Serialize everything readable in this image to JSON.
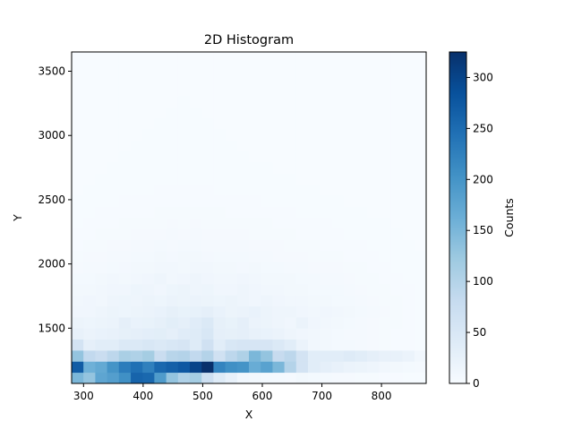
{
  "chart_data": {
    "type": "heatmap",
    "title": "2D Histogram",
    "xlabel": "X",
    "ylabel": "Y",
    "xlim": [
      280,
      875
    ],
    "ylim": [
      1070,
      3650
    ],
    "x_ticks": [
      300,
      400,
      500,
      600,
      700,
      800
    ],
    "y_ticks": [
      1500,
      2000,
      2500,
      3000,
      3500
    ],
    "x_edges": [
      280,
      299.8,
      319.7,
      339.5,
      359.3,
      379.2,
      399,
      418.8,
      438.7,
      458.5,
      478.3,
      498.2,
      518,
      537.8,
      557.7,
      577.5,
      597.3,
      617.2,
      637,
      656.8,
      676.7,
      696.5,
      716.3,
      736.2,
      756,
      775.8,
      795.7,
      815.5,
      835.3,
      855.2,
      875
    ],
    "y_edges": [
      1070,
      1156,
      1242,
      1328,
      1414,
      1500,
      1586,
      1672,
      1758,
      1844,
      1930,
      2016,
      2102,
      2188,
      2274,
      2360,
      2446,
      2532,
      2618,
      2704,
      2790,
      2876,
      2962,
      3048,
      3134,
      3220,
      3306,
      3392,
      3478,
      3564,
      3650
    ],
    "counts": [
      [
        150,
        130,
        175,
        185,
        205,
        260,
        255,
        190,
        130,
        105,
        115,
        70,
        40,
        25,
        10,
        8,
        6,
        5,
        4,
        8,
        6,
        5,
        4,
        4,
        3,
        3,
        2,
        2,
        1,
        1
      ],
      [
        270,
        160,
        170,
        200,
        230,
        245,
        225,
        255,
        265,
        275,
        300,
        325,
        220,
        205,
        200,
        165,
        180,
        150,
        100,
        60,
        35,
        30,
        25,
        20,
        18,
        15,
        10,
        8,
        6,
        5
      ],
      [
        130,
        85,
        75,
        90,
        110,
        105,
        115,
        75,
        95,
        100,
        85,
        100,
        65,
        90,
        105,
        150,
        130,
        80,
        90,
        60,
        35,
        35,
        35,
        40,
        35,
        30,
        25,
        25,
        20,
        10
      ],
      [
        60,
        30,
        35,
        35,
        45,
        45,
        50,
        45,
        50,
        55,
        40,
        65,
        35,
        50,
        55,
        55,
        55,
        45,
        35,
        20,
        10,
        8,
        6,
        6,
        5,
        4,
        3,
        2,
        2,
        1
      ],
      [
        25,
        20,
        22,
        25,
        28,
        30,
        32,
        34,
        30,
        38,
        40,
        50,
        30,
        28,
        30,
        25,
        22,
        20,
        15,
        12,
        10,
        8,
        6,
        5,
        5,
        4,
        3,
        2,
        2,
        1
      ],
      [
        18,
        16,
        18,
        20,
        30,
        22,
        24,
        28,
        34,
        30,
        38,
        45,
        28,
        24,
        30,
        20,
        18,
        15,
        12,
        20,
        12,
        10,
        8,
        6,
        5,
        4,
        3,
        3,
        2,
        1
      ],
      [
        12,
        12,
        14,
        18,
        16,
        18,
        20,
        22,
        28,
        24,
        26,
        30,
        22,
        18,
        20,
        22,
        18,
        15,
        15,
        12,
        10,
        12,
        10,
        8,
        6,
        5,
        4,
        3,
        2,
        1
      ],
      [
        10,
        12,
        10,
        14,
        16,
        14,
        18,
        16,
        20,
        18,
        20,
        18,
        16,
        18,
        14,
        12,
        15,
        12,
        10,
        10,
        8,
        8,
        6,
        6,
        5,
        4,
        3,
        3,
        2,
        1
      ],
      [
        8,
        8,
        10,
        12,
        12,
        16,
        14,
        12,
        16,
        18,
        14,
        16,
        12,
        12,
        14,
        12,
        10,
        10,
        8,
        8,
        6,
        6,
        6,
        5,
        4,
        3,
        3,
        2,
        2,
        1
      ],
      [
        6,
        6,
        8,
        10,
        8,
        10,
        12,
        14,
        10,
        12,
        14,
        12,
        10,
        10,
        12,
        10,
        8,
        8,
        8,
        6,
        6,
        5,
        5,
        4,
        3,
        3,
        2,
        2,
        1,
        1
      ],
      [
        4,
        5,
        5,
        6,
        7,
        8,
        8,
        10,
        10,
        8,
        10,
        10,
        8,
        8,
        7,
        8,
        6,
        6,
        5,
        5,
        4,
        4,
        4,
        3,
        3,
        2,
        2,
        1,
        1,
        1
      ],
      [
        3,
        4,
        4,
        5,
        5,
        6,
        6,
        8,
        7,
        8,
        8,
        7,
        6,
        6,
        6,
        5,
        5,
        4,
        4,
        4,
        3,
        3,
        3,
        2,
        2,
        2,
        1,
        1,
        1,
        1
      ],
      [
        2,
        3,
        3,
        4,
        4,
        5,
        5,
        6,
        5,
        6,
        6,
        5,
        5,
        5,
        5,
        4,
        4,
        4,
        3,
        3,
        3,
        2,
        2,
        2,
        2,
        1,
        1,
        1,
        1,
        0
      ],
      [
        2,
        2,
        3,
        3,
        3,
        4,
        4,
        4,
        5,
        4,
        5,
        4,
        4,
        4,
        4,
        3,
        3,
        3,
        3,
        2,
        2,
        2,
        2,
        1,
        1,
        1,
        1,
        1,
        0,
        0
      ],
      [
        1,
        2,
        2,
        2,
        3,
        3,
        3,
        3,
        4,
        3,
        4,
        3,
        3,
        3,
        3,
        3,
        3,
        2,
        2,
        2,
        2,
        2,
        1,
        1,
        1,
        1,
        1,
        0,
        0,
        0
      ],
      [
        1,
        1,
        2,
        2,
        2,
        2,
        2,
        3,
        3,
        3,
        3,
        3,
        3,
        2,
        2,
        2,
        2,
        2,
        2,
        1,
        1,
        1,
        1,
        1,
        1,
        0,
        0,
        0,
        0,
        0
      ],
      [
        1,
        1,
        1,
        1,
        2,
        2,
        2,
        2,
        2,
        2,
        2,
        2,
        2,
        2,
        2,
        2,
        1,
        1,
        1,
        1,
        1,
        1,
        1,
        0,
        0,
        0,
        0,
        0,
        0,
        0
      ],
      [
        0,
        1,
        1,
        1,
        1,
        1,
        1,
        2,
        2,
        2,
        2,
        2,
        1,
        1,
        1,
        1,
        1,
        1,
        1,
        1,
        1,
        0,
        0,
        0,
        0,
        0,
        0,
        0,
        0,
        0
      ],
      [
        0,
        0,
        1,
        1,
        1,
        1,
        1,
        1,
        1,
        1,
        1,
        1,
        1,
        1,
        1,
        1,
        1,
        1,
        1,
        0,
        0,
        0,
        0,
        0,
        0,
        0,
        0,
        0,
        0,
        0
      ],
      [
        0,
        0,
        0,
        1,
        1,
        1,
        1,
        1,
        1,
        1,
        1,
        1,
        1,
        1,
        1,
        1,
        1,
        0,
        0,
        0,
        0,
        0,
        0,
        0,
        0,
        0,
        0,
        0,
        0,
        0
      ],
      [
        0,
        0,
        0,
        0,
        1,
        1,
        1,
        1,
        1,
        1,
        1,
        1,
        1,
        1,
        1,
        0,
        0,
        0,
        0,
        0,
        0,
        0,
        0,
        0,
        0,
        0,
        0,
        0,
        0,
        0
      ],
      [
        0,
        0,
        0,
        0,
        0,
        1,
        1,
        1,
        1,
        1,
        1,
        1,
        1,
        1,
        0,
        0,
        0,
        0,
        0,
        0,
        0,
        0,
        0,
        0,
        0,
        0,
        0,
        0,
        0,
        0
      ],
      [
        0,
        0,
        0,
        0,
        0,
        0,
        1,
        1,
        1,
        1,
        1,
        1,
        1,
        0,
        0,
        0,
        0,
        0,
        0,
        0,
        0,
        0,
        0,
        0,
        0,
        0,
        0,
        0,
        0,
        0
      ],
      [
        0,
        0,
        0,
        0,
        0,
        0,
        0,
        1,
        1,
        1,
        1,
        1,
        0,
        0,
        0,
        0,
        0,
        0,
        0,
        0,
        0,
        0,
        0,
        0,
        0,
        0,
        0,
        0,
        0,
        0
      ],
      [
        0,
        0,
        0,
        0,
        0,
        0,
        0,
        0,
        1,
        1,
        1,
        0,
        0,
        0,
        0,
        0,
        0,
        0,
        0,
        0,
        0,
        0,
        0,
        0,
        0,
        0,
        0,
        0,
        0,
        0
      ],
      [
        0,
        0,
        0,
        0,
        0,
        0,
        0,
        0,
        0,
        1,
        0,
        0,
        0,
        0,
        0,
        0,
        0,
        0,
        0,
        0,
        0,
        0,
        0,
        0,
        0,
        0,
        0,
        0,
        0,
        0
      ],
      [
        0,
        0,
        0,
        0,
        0,
        0,
        0,
        0,
        0,
        0,
        0,
        0,
        0,
        0,
        0,
        0,
        0,
        0,
        0,
        0,
        0,
        0,
        0,
        0,
        0,
        0,
        0,
        0,
        0,
        0
      ],
      [
        0,
        0,
        0,
        0,
        0,
        0,
        0,
        0,
        0,
        0,
        0,
        0,
        0,
        0,
        0,
        0,
        0,
        0,
        0,
        0,
        0,
        0,
        0,
        0,
        0,
        0,
        0,
        0,
        0,
        0
      ],
      [
        0,
        0,
        0,
        0,
        0,
        0,
        0,
        0,
        0,
        0,
        0,
        0,
        0,
        0,
        0,
        0,
        0,
        0,
        0,
        0,
        0,
        0,
        0,
        0,
        0,
        0,
        0,
        0,
        0,
        0
      ],
      [
        0,
        0,
        0,
        0,
        0,
        0,
        0,
        0,
        0,
        0,
        0,
        0,
        0,
        0,
        0,
        0,
        0,
        0,
        0,
        0,
        0,
        0,
        0,
        0,
        0,
        0,
        0,
        0,
        0,
        0
      ]
    ],
    "colorbar": {
      "label": "Counts",
      "min": 0,
      "max": 325,
      "ticks": [
        0,
        50,
        100,
        150,
        200,
        250,
        300
      ],
      "colormap": "Blues",
      "colors": [
        "#f7fbff",
        "#deebf7",
        "#c6dbef",
        "#9ecae1",
        "#6baed6",
        "#4292c6",
        "#2171b5",
        "#08519c",
        "#08306b"
      ]
    },
    "grid": false,
    "legend": "none"
  }
}
